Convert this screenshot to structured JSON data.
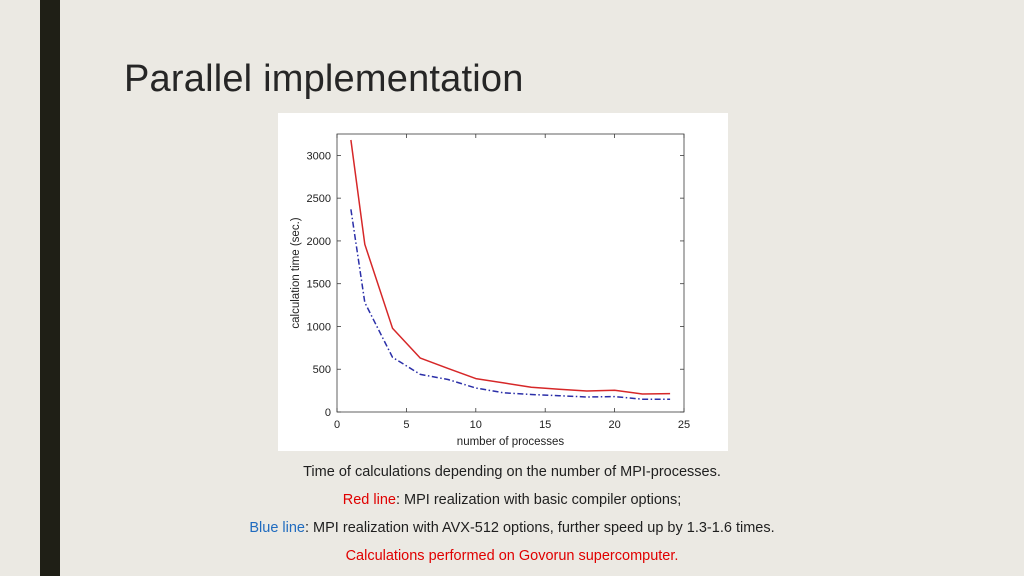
{
  "slide": {
    "title": "Parallel implementation"
  },
  "chart_data": {
    "type": "line",
    "xlabel": "number of processes",
    "ylabel": "calculation time (sec.)",
    "xlim": [
      0,
      25
    ],
    "ylim": [
      0,
      3250
    ],
    "xticks": [
      0,
      5,
      10,
      15,
      20,
      25
    ],
    "yticks": [
      0,
      500,
      1000,
      1500,
      2000,
      2500,
      3000
    ],
    "grid": false,
    "legend": "none",
    "series": [
      {
        "color": "#d62728",
        "style": "solid",
        "x": [
          1,
          2,
          4,
          6,
          8,
          10,
          12,
          14,
          16,
          18,
          20,
          22,
          24
        ],
        "y": [
          3180,
          1960,
          980,
          630,
          510,
          390,
          340,
          290,
          265,
          245,
          255,
          210,
          215
        ]
      },
      {
        "color": "#2b2fa8",
        "style": "dashdot",
        "x": [
          1,
          2,
          4,
          6,
          8,
          10,
          12,
          14,
          16,
          18,
          20,
          22,
          24
        ],
        "y": [
          2370,
          1280,
          640,
          440,
          380,
          280,
          225,
          205,
          190,
          175,
          180,
          150,
          150
        ]
      }
    ]
  },
  "caption": {
    "line1": "Time of calculations depending on the number of MPI-processes.",
    "red_label": "Red line",
    "red_text": ": MPI realization with basic compiler options;",
    "blue_label": "Blue line",
    "blue_text": ": MPI realization with AVX-512 options, further speed up by 1.3-1.6 times.",
    "note": "Calculations performed on Govorun supercomputer."
  },
  "colors": {
    "background": "#ebe9e3",
    "side_bar": "#1f1f16",
    "red_label": "#e00000",
    "blue_label": "#1f6bbf",
    "note": "#e00000"
  }
}
